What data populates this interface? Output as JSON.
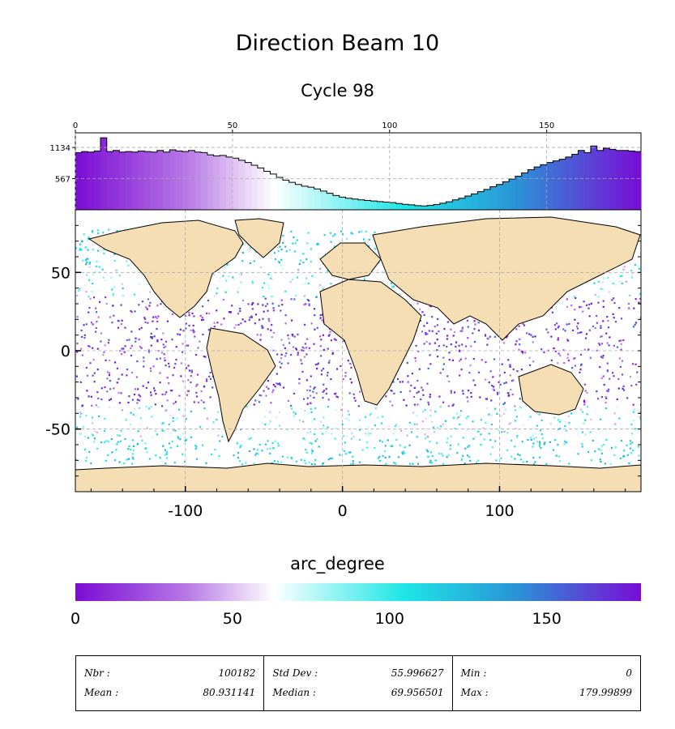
{
  "title": "Direction Beam 10",
  "subtitle": "Cycle 98",
  "colorbar": {
    "label": "arc_degree",
    "min": 0,
    "max": 180,
    "ticks": [
      "0",
      "50",
      "100",
      "150"
    ],
    "colors": [
      "#7a0cd6",
      "#b97ae6",
      "#ffffff",
      "#1ee6e6",
      "#2a93d6",
      "#7a0cd6"
    ]
  },
  "stats": {
    "nbr_label": "Nbr :",
    "nbr_value": "100182",
    "mean_label": "Mean :",
    "mean_value": "80.931141",
    "std_label": "Std Dev :",
    "std_value": "55.996627",
    "median_label": "Median :",
    "median_value": "69.956501",
    "min_label": "Min :",
    "min_value": "0",
    "max_label": "Max :",
    "max_value": "179.99899"
  },
  "chart_data": [
    {
      "type": "bar",
      "title": "",
      "x_ticks": [
        "0",
        "50",
        "100",
        "150"
      ],
      "y_ticks": [
        "1134",
        "567"
      ],
      "xlim": [
        0,
        180
      ],
      "ylim": [
        0,
        1400
      ],
      "grid": true,
      "bin_width": 2,
      "values": [
        1040,
        1060,
        1050,
        1070,
        1310,
        1060,
        1080,
        1050,
        1060,
        1050,
        1070,
        1060,
        1050,
        1080,
        1050,
        1090,
        1070,
        1060,
        1080,
        1050,
        1040,
        1000,
        980,
        990,
        960,
        940,
        900,
        860,
        810,
        760,
        700,
        650,
        590,
        540,
        500,
        460,
        430,
        410,
        380,
        340,
        300,
        260,
        230,
        210,
        195,
        180,
        170,
        160,
        150,
        140,
        130,
        115,
        100,
        90,
        75,
        70,
        80,
        95,
        120,
        145,
        180,
        210,
        250,
        290,
        330,
        370,
        420,
        460,
        510,
        560,
        610,
        670,
        730,
        780,
        820,
        860,
        890,
        920,
        960,
        1010,
        1080,
        1040,
        1160,
        1080,
        1120,
        1100,
        1080,
        1080,
        1070,
        1060
      ]
    },
    {
      "type": "scatter",
      "title": "",
      "description_values": "global map of along-track direction values colored by arc_degree",
      "x_ticks": [
        "-100",
        "0",
        "100"
      ],
      "y_ticks": [
        "50",
        "0",
        "-50"
      ],
      "xlim": [
        -170,
        190
      ],
      "ylim": [
        -90,
        90
      ],
      "grid": true
    }
  ]
}
